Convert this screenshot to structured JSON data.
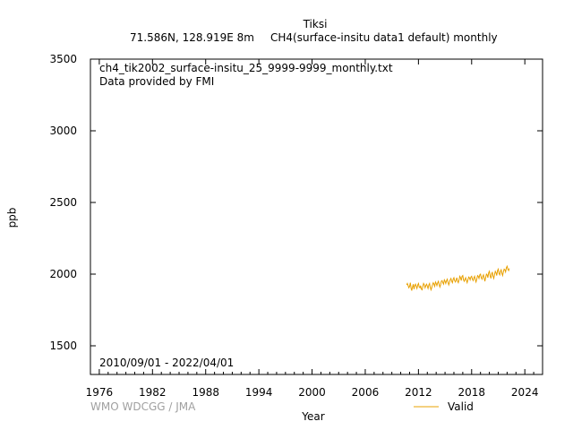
{
  "header": {
    "station": "Tiksi",
    "location": "71.586N, 128.919E 8m",
    "dataset": "CH4(surface-insitu data1 default) monthly"
  },
  "annotations": {
    "filename": "ch4_tik2002_surface-insitu_25_9999-9999_monthly.txt",
    "provider": "Data provided by FMI",
    "period": "2010/09/01 - 2022/04/01"
  },
  "footer": {
    "credit": "WMO WDCGG / JMA"
  },
  "colors": {
    "series": "#e8a000",
    "credit": "#a0a0a0"
  },
  "chart_data": {
    "type": "line",
    "xlabel": "Year",
    "ylabel": "ppb",
    "xlim": [
      1975,
      2026
    ],
    "ylim": [
      1300,
      3500
    ],
    "xticks": [
      1976,
      1982,
      1988,
      1994,
      2000,
      2006,
      2012,
      2018,
      2024
    ],
    "yticks": [
      1500,
      2000,
      2500,
      3000,
      3500
    ],
    "legend": {
      "placement": "bottom-right",
      "entries": [
        "Valid"
      ]
    },
    "series": [
      {
        "name": "Valid",
        "x": [
          2010.67,
          2010.75,
          2010.83,
          2010.92,
          2011.0,
          2011.08,
          2011.17,
          2011.25,
          2011.33,
          2011.42,
          2011.5,
          2011.58,
          2011.67,
          2011.75,
          2011.83,
          2011.92,
          2012.0,
          2012.08,
          2012.17,
          2012.25,
          2012.33,
          2012.42,
          2012.5,
          2012.58,
          2012.67,
          2012.75,
          2012.83,
          2012.92,
          2013.0,
          2013.08,
          2013.17,
          2013.25,
          2013.33,
          2013.42,
          2013.5,
          2013.58,
          2013.67,
          2013.75,
          2013.83,
          2013.92,
          2014.0,
          2014.08,
          2014.17,
          2014.25,
          2014.33,
          2014.42,
          2014.5,
          2014.58,
          2014.67,
          2014.75,
          2014.83,
          2014.92,
          2015.0,
          2015.08,
          2015.17,
          2015.25,
          2015.33,
          2015.42,
          2015.5,
          2015.58,
          2015.67,
          2015.75,
          2015.83,
          2015.92,
          2016.0,
          2016.08,
          2016.17,
          2016.25,
          2016.33,
          2016.42,
          2016.5,
          2016.58,
          2016.67,
          2016.75,
          2016.83,
          2016.92,
          2017.0,
          2017.08,
          2017.17,
          2017.25,
          2017.33,
          2017.42,
          2017.5,
          2017.58,
          2017.67,
          2017.75,
          2017.83,
          2017.92,
          2018.0,
          2018.08,
          2018.17,
          2018.25,
          2018.33,
          2018.42,
          2018.5,
          2018.58,
          2018.67,
          2018.75,
          2018.83,
          2018.92,
          2019.0,
          2019.08,
          2019.17,
          2019.25,
          2019.33,
          2019.42,
          2019.5,
          2019.58,
          2019.67,
          2019.75,
          2019.83,
          2019.92,
          2020.0,
          2020.08,
          2020.17,
          2020.25,
          2020.33,
          2020.42,
          2020.5,
          2020.58,
          2020.67,
          2020.75,
          2020.83,
          2020.92,
          2021.0,
          2021.08,
          2021.17,
          2021.25,
          2021.33,
          2021.42,
          2021.5,
          2021.58,
          2021.67,
          2021.75,
          2021.83,
          2021.92,
          2022.0,
          2022.08,
          2022.17,
          2022.25
        ],
        "values": [
          1925,
          1935,
          1920,
          1905,
          1915,
          1940,
          1900,
          1885,
          1910,
          1930,
          1895,
          1920,
          1930,
          1915,
          1900,
          1925,
          1935,
          1910,
          1905,
          1920,
          1895,
          1890,
          1915,
          1935,
          1925,
          1905,
          1920,
          1930,
          1915,
          1900,
          1925,
          1935,
          1910,
          1890,
          1905,
          1925,
          1940,
          1930,
          1915,
          1945,
          1935,
          1920,
          1940,
          1950,
          1930,
          1910,
          1925,
          1950,
          1955,
          1940,
          1930,
          1960,
          1950,
          1935,
          1955,
          1965,
          1945,
          1925,
          1940,
          1960,
          1970,
          1950,
          1940,
          1965,
          1975,
          1955,
          1945,
          1960,
          1975,
          1950,
          1940,
          1960,
          1985,
          1975,
          1955,
          1985,
          1990,
          1960,
          1950,
          1965,
          1975,
          1955,
          1940,
          1960,
          1980,
          1975,
          1960,
          1980,
          1985,
          1965,
          1955,
          1975,
          1985,
          1960,
          1945,
          1965,
          1990,
          1985,
          1970,
          1995,
          2000,
          1975,
          1965,
          1985,
          1995,
          1970,
          1950,
          1975,
          2000,
          1995,
          1975,
          2010,
          2020,
          1990,
          1970,
          2000,
          2015,
          1985,
          1970,
          1995,
          2020,
          2010,
          1990,
          2025,
          2035,
          2005,
          1995,
          2020,
          2030,
          2005,
          1990,
          2015,
          2035,
          2030,
          2015,
          2045,
          2055,
          2035,
          2025,
          2040
        ]
      }
    ]
  }
}
